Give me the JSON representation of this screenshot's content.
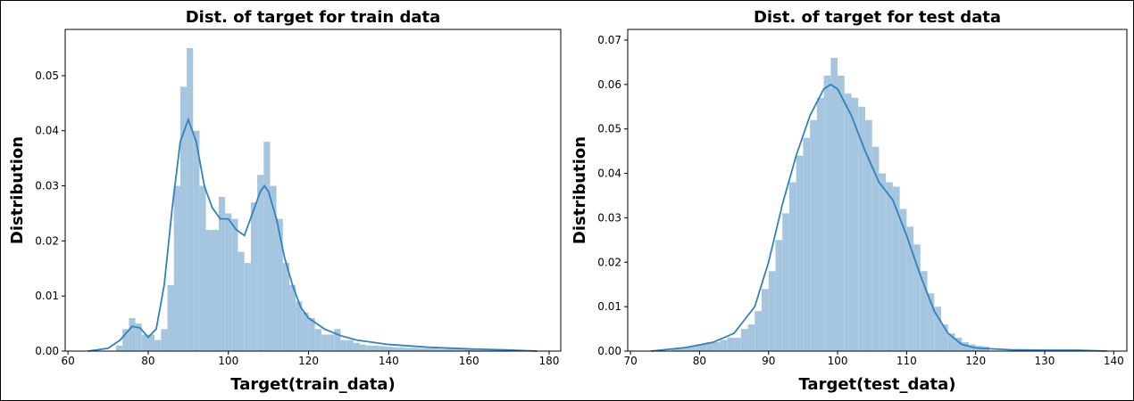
{
  "chart_data": [
    {
      "type": "histogram",
      "title": "Dist. of target for train data",
      "xlabel": "Target(train_data)",
      "ylabel": "Distribution",
      "bins": [
        72,
        73.6,
        75.2,
        76.8,
        78.4,
        80,
        81.6,
        83.2,
        84.8,
        86.4,
        88,
        89.6,
        91.2,
        92.8,
        94.4,
        96,
        97.6,
        99.2,
        100.8,
        102.4,
        104,
        105.6,
        107.2,
        108.8,
        110.4,
        112,
        113.6,
        115.2,
        116.8,
        118.4,
        120,
        121.6,
        123.2,
        124.8,
        126.4,
        128,
        129.6,
        131.2,
        132.8,
        134.4,
        136,
        137.6,
        139.2,
        140.8,
        142.4,
        144,
        145.6,
        147.2,
        148.8,
        150.4,
        152,
        153.6,
        155.2,
        156.8,
        158.4,
        160,
        161.6,
        163.2,
        164.8,
        166.4,
        168,
        169.6,
        171.2,
        172.8,
        174.4,
        176
      ],
      "values": [
        0.001,
        0.004,
        0.006,
        0.005,
        0.003,
        0.003,
        0.002,
        0.004,
        0.012,
        0.03,
        0.048,
        0.055,
        0.04,
        0.03,
        0.022,
        0.022,
        0.028,
        0.025,
        0.024,
        0.018,
        0.016,
        0.027,
        0.032,
        0.038,
        0.03,
        0.024,
        0.016,
        0.012,
        0.009,
        0.007,
        0.006,
        0.004,
        0.003,
        0.003,
        0.004,
        0.002,
        0.002,
        0.0015,
        0.0012,
        0.001,
        0.001,
        0.0009,
        0.0008,
        0.0007,
        0.0007,
        0.0006,
        0.0006,
        0.0005,
        0.0005,
        0.0005,
        0.0004,
        0.0004,
        0.0004,
        0.0003,
        0.0003,
        0.0003,
        0.0002,
        0.0002,
        0.0002,
        0.0002,
        0.0001,
        0.0001,
        0.0001,
        0.0001,
        0.0001
      ],
      "color": "#a6c6e0",
      "kde_x": [
        65,
        70,
        73,
        76,
        78,
        80,
        82,
        84,
        86,
        88,
        90,
        92,
        94,
        96,
        98,
        100,
        102,
        104,
        106,
        108,
        109,
        110,
        112,
        114,
        116,
        118,
        120,
        124,
        128,
        132,
        140,
        150,
        160,
        170,
        177
      ],
      "kde_y": [
        0,
        0.0005,
        0.002,
        0.0045,
        0.0042,
        0.0025,
        0.004,
        0.012,
        0.026,
        0.038,
        0.042,
        0.038,
        0.03,
        0.026,
        0.024,
        0.024,
        0.022,
        0.021,
        0.025,
        0.029,
        0.03,
        0.029,
        0.024,
        0.017,
        0.012,
        0.008,
        0.006,
        0.004,
        0.0028,
        0.002,
        0.0012,
        0.0007,
        0.0004,
        0.0002,
        0
      ],
      "kde_color": "#3182bd",
      "xlim": [
        59.3,
        182.9
      ],
      "ylim": [
        0,
        0.0584
      ],
      "xticks": [
        60,
        80,
        100,
        120,
        140,
        160,
        180
      ],
      "yticks": [
        {
          "value": 0,
          "label": "0.00"
        },
        {
          "value": 0.01,
          "label": "0.01"
        },
        {
          "value": 0.02,
          "label": "0.02"
        },
        {
          "value": 0.03,
          "label": "0.03"
        },
        {
          "value": 0.04,
          "label": "0.04"
        },
        {
          "value": 0.05,
          "label": "0.05"
        }
      ]
    },
    {
      "type": "histogram",
      "title": "Dist. of target for test data",
      "xlabel": "Target(test_data)",
      "ylabel": "Distribution",
      "bins": [
        76,
        77,
        78,
        79,
        80,
        81,
        82,
        83,
        84,
        85,
        86,
        87,
        88,
        89,
        90,
        91,
        92,
        93,
        94,
        95,
        96,
        97,
        98,
        99,
        100,
        101,
        102,
        103,
        104,
        105,
        106,
        107,
        108,
        109,
        110,
        111,
        112,
        113,
        114,
        115,
        116,
        117,
        118,
        119,
        120,
        121,
        122
      ],
      "values": [
        0.0005,
        0.0008,
        0.001,
        0.0012,
        0.0015,
        0.002,
        0.002,
        0.0025,
        0.003,
        0.003,
        0.005,
        0.006,
        0.009,
        0.014,
        0.018,
        0.025,
        0.031,
        0.038,
        0.044,
        0.048,
        0.052,
        0.057,
        0.062,
        0.066,
        0.062,
        0.058,
        0.057,
        0.055,
        0.052,
        0.046,
        0.04,
        0.038,
        0.037,
        0.032,
        0.028,
        0.024,
        0.018,
        0.013,
        0.01,
        0.006,
        0.004,
        0.003,
        0.002,
        0.0015,
        0.0012,
        0.001
      ],
      "color": "#a6c6e0",
      "kde_x": [
        73,
        78,
        82,
        85,
        88,
        90,
        92,
        94,
        96,
        98,
        99,
        100,
        102,
        104,
        106,
        107,
        108,
        110,
        112,
        114,
        116,
        118,
        120,
        125,
        130,
        135,
        139
      ],
      "kde_y": [
        0,
        0.0008,
        0.002,
        0.004,
        0.01,
        0.02,
        0.033,
        0.044,
        0.053,
        0.059,
        0.06,
        0.059,
        0.053,
        0.045,
        0.038,
        0.036,
        0.034,
        0.026,
        0.017,
        0.009,
        0.004,
        0.0015,
        0.0007,
        0.0003,
        0.0002,
        0.0002,
        0
      ],
      "kde_color": "#3182bd",
      "xlim": [
        69.6,
        141.9
      ],
      "ylim": [
        0,
        0.0724
      ],
      "xticks": [
        70,
        80,
        90,
        100,
        110,
        120,
        130,
        140
      ],
      "yticks": [
        {
          "value": 0,
          "label": "0.00"
        },
        {
          "value": 0.01,
          "label": "0.01"
        },
        {
          "value": 0.02,
          "label": "0.02"
        },
        {
          "value": 0.03,
          "label": "0.03"
        },
        {
          "value": 0.04,
          "label": "0.04"
        },
        {
          "value": 0.05,
          "label": "0.05"
        },
        {
          "value": 0.06,
          "label": "0.06"
        },
        {
          "value": 0.07,
          "label": "0.07"
        }
      ]
    }
  ]
}
